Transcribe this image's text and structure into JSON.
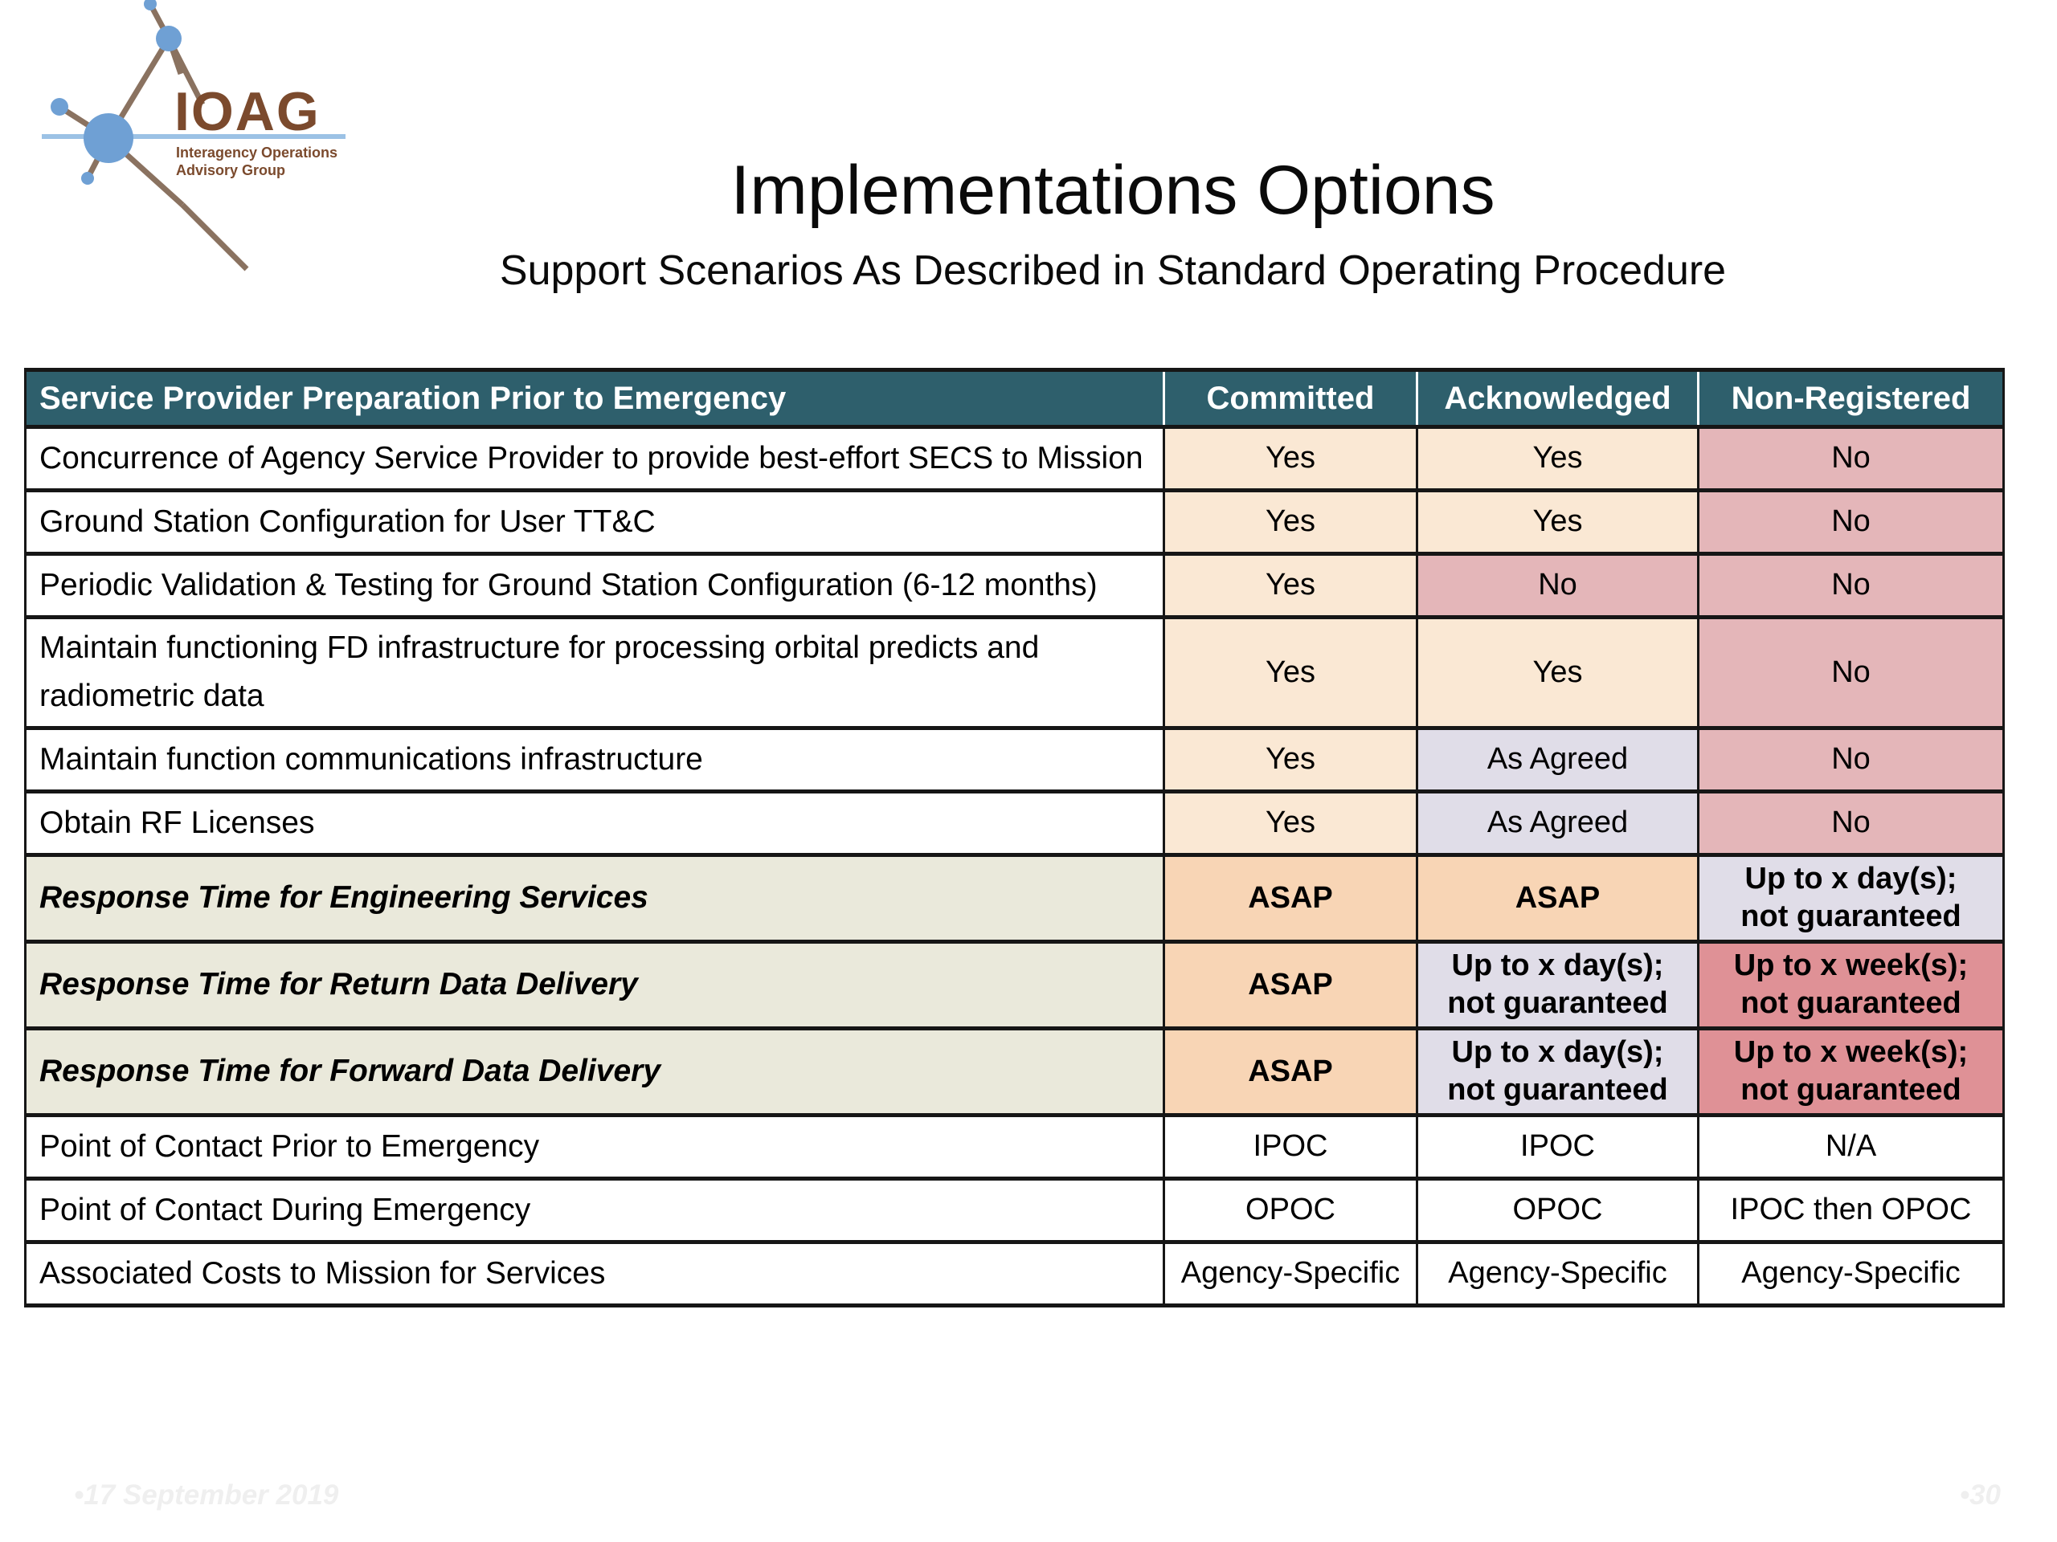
{
  "logo": {
    "acronym": "IOAG",
    "line1": "Interagency Operations",
    "line2": "Advisory Group"
  },
  "title": "Implementations Options",
  "subtitle": "Support Scenarios As Described in Standard Operating Procedure",
  "table": {
    "headers": [
      "Service Provider Preparation Prior to Emergency",
      "Committed",
      "Acknowledged",
      "Non-Registered"
    ],
    "rows": [
      {
        "label": "Concurrence of Agency Service Provider to provide best-effort SECS to Mission",
        "emph": false,
        "cells": [
          {
            "text": "Yes",
            "style": "yes"
          },
          {
            "text": "Yes",
            "style": "yes"
          },
          {
            "text": "No",
            "style": "no"
          }
        ]
      },
      {
        "label": "Ground Station Configuration for User TT&C",
        "emph": false,
        "cells": [
          {
            "text": "Yes",
            "style": "yes"
          },
          {
            "text": "Yes",
            "style": "yes"
          },
          {
            "text": "No",
            "style": "no"
          }
        ]
      },
      {
        "label": "Periodic Validation & Testing for Ground Station Configuration (6-12 months)",
        "emph": false,
        "cells": [
          {
            "text": "Yes",
            "style": "yes"
          },
          {
            "text": "No",
            "style": "no"
          },
          {
            "text": "No",
            "style": "no"
          }
        ]
      },
      {
        "label": "Maintain functioning FD infrastructure for processing orbital predicts and radiometric data",
        "emph": false,
        "cells": [
          {
            "text": "Yes",
            "style": "yes"
          },
          {
            "text": "Yes",
            "style": "yes"
          },
          {
            "text": "No",
            "style": "no"
          }
        ]
      },
      {
        "label": "Maintain function communications infrastructure",
        "emph": false,
        "cells": [
          {
            "text": "Yes",
            "style": "yes"
          },
          {
            "text": "As Agreed",
            "style": "agreed"
          },
          {
            "text": "No",
            "style": "no"
          }
        ]
      },
      {
        "label": "Obtain RF Licenses",
        "emph": false,
        "cells": [
          {
            "text": "Yes",
            "style": "yes"
          },
          {
            "text": "As Agreed",
            "style": "agreed"
          },
          {
            "text": "No",
            "style": "no"
          }
        ]
      },
      {
        "label": "Response Time for Engineering Services",
        "emph": true,
        "cells": [
          {
            "text": "ASAP",
            "style": "asap"
          },
          {
            "text": "ASAP",
            "style": "asap"
          },
          {
            "text": "Up to x day(s);\nnot guaranteed",
            "style": "upday"
          }
        ]
      },
      {
        "label": "Response Time for Return Data Delivery",
        "emph": true,
        "cells": [
          {
            "text": "ASAP",
            "style": "asap"
          },
          {
            "text": "Up to x day(s);\nnot guaranteed",
            "style": "upday"
          },
          {
            "text": "Up to x week(s);\nnot guaranteed",
            "style": "upweek"
          }
        ]
      },
      {
        "label": "Response Time for Forward Data Delivery",
        "emph": true,
        "cells": [
          {
            "text": "ASAP",
            "style": "asap"
          },
          {
            "text": "Up to x day(s);\nnot guaranteed",
            "style": "upday"
          },
          {
            "text": "Up to x week(s);\nnot guaranteed",
            "style": "upweek"
          }
        ]
      },
      {
        "label": "Point of Contact Prior to Emergency",
        "emph": false,
        "cells": [
          {
            "text": "IPOC",
            "style": "plain"
          },
          {
            "text": "IPOC",
            "style": "plain"
          },
          {
            "text": "N/A",
            "style": "plain"
          }
        ]
      },
      {
        "label": "Point of Contact During Emergency",
        "emph": false,
        "cells": [
          {
            "text": "OPOC",
            "style": "plain"
          },
          {
            "text": "OPOC",
            "style": "plain"
          },
          {
            "text": "IPOC then OPOC",
            "style": "plain"
          }
        ]
      },
      {
        "label": "Associated Costs to Mission for Services",
        "emph": false,
        "cells": [
          {
            "text": "Agency-Specific",
            "style": "plain"
          },
          {
            "text": "Agency-Specific",
            "style": "plain"
          },
          {
            "text": "Agency-Specific",
            "style": "plain"
          }
        ]
      }
    ]
  },
  "footer": {
    "date": "•17 September 2019",
    "slide_number": "•30"
  },
  "colors": {
    "header_bg": "#2E5F6C",
    "yes_bg": "#FAE8D4",
    "no_bg": "#E4B6B9",
    "as_agreed_bg": "#E0DDE8",
    "asap_bg": "#F8D5B5",
    "up_day_bg": "#E0DDE8",
    "up_week_bg": "#DF9196",
    "emph_label_bg": "#EAE9DB",
    "logo_blue": "#6FA0D4",
    "logo_light_blue": "#9CC2E5",
    "logo_brown": "#7B4A2D",
    "logo_line_brown": "#8A7260"
  }
}
